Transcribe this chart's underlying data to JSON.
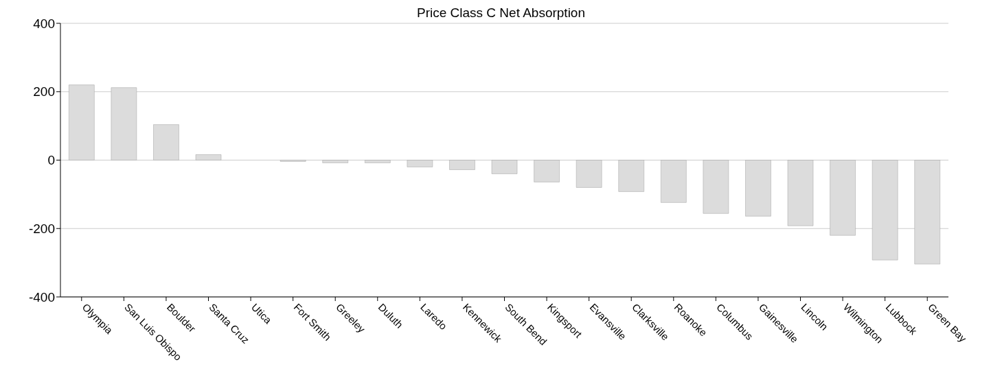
{
  "chart_data": {
    "type": "bar",
    "title": "Price Class C Net Absorption",
    "categories": [
      "Olympia",
      "San Luis Obispo",
      "Boulder",
      "Santa Cruz",
      "Utica",
      "Fort Smith",
      "Greeley",
      "Duluth",
      "Laredo",
      "Kennewick",
      "South Bend",
      "Kingsport",
      "Evansville",
      "Clarksville",
      "Roanoke",
      "Columbus",
      "Gainesville",
      "Lincoln",
      "Wilmington",
      "Lubbock",
      "Green Bay"
    ],
    "values": [
      220,
      212,
      104,
      16,
      0,
      -4,
      -8,
      -8,
      -20,
      -28,
      -40,
      -64,
      -80,
      -92,
      -124,
      -156,
      -164,
      -192,
      -220,
      -292,
      -304
    ],
    "color": "#dcdcdc",
    "ylim": [
      -400,
      400
    ],
    "yticks": [
      -400,
      -200,
      0,
      200,
      400
    ],
    "grid": "y"
  }
}
